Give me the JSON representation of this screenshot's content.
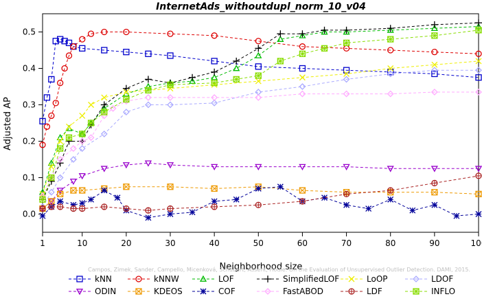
{
  "chart_data": {
    "type": "line",
    "title": "InternetAds_withoutdupl_norm_10_v04",
    "xlabel": "Neighborhood size",
    "ylabel": "Adjusted AP",
    "xlim": [
      1,
      100
    ],
    "ylim": [
      -0.05,
      0.55
    ],
    "xticks": [
      1,
      10,
      20,
      30,
      40,
      50,
      60,
      70,
      80,
      90,
      100
    ],
    "yticks": [
      0.0,
      0.1,
      0.2,
      0.3,
      0.4,
      0.5
    ],
    "grid": false,
    "legend_position": "bottom",
    "watermark": "Campos, Zimek, Sander, Campello, Micenková, Schubert, Assent, Houle: On the Evaluation of Unsupervised Outlier Detection. DAMI, 2015.",
    "series": [
      {
        "name": "kNN",
        "color": "#0000cc",
        "marker": "square",
        "points": [
          [
            1,
            0.255
          ],
          [
            2,
            0.32
          ],
          [
            3,
            0.37
          ],
          [
            4,
            0.475
          ],
          [
            5,
            0.48
          ],
          [
            6,
            0.475
          ],
          [
            7,
            0.47
          ],
          [
            8,
            0.46
          ],
          [
            10,
            0.455
          ],
          [
            15,
            0.45
          ],
          [
            20,
            0.445
          ],
          [
            25,
            0.44
          ],
          [
            30,
            0.435
          ],
          [
            40,
            0.42
          ],
          [
            50,
            0.405
          ],
          [
            60,
            0.4
          ],
          [
            70,
            0.395
          ],
          [
            80,
            0.39
          ],
          [
            90,
            0.385
          ],
          [
            100,
            0.375
          ]
        ]
      },
      {
        "name": "kNNW",
        "color": "#dd0000",
        "marker": "circle",
        "points": [
          [
            1,
            0.19
          ],
          [
            2,
            0.24
          ],
          [
            3,
            0.27
          ],
          [
            4,
            0.305
          ],
          [
            5,
            0.36
          ],
          [
            6,
            0.4
          ],
          [
            7,
            0.435
          ],
          [
            8,
            0.46
          ],
          [
            10,
            0.48
          ],
          [
            12,
            0.495
          ],
          [
            15,
            0.5
          ],
          [
            20,
            0.5
          ],
          [
            30,
            0.495
          ],
          [
            40,
            0.49
          ],
          [
            50,
            0.475
          ],
          [
            60,
            0.46
          ],
          [
            70,
            0.455
          ],
          [
            80,
            0.45
          ],
          [
            90,
            0.445
          ],
          [
            100,
            0.44
          ]
        ]
      },
      {
        "name": "LOF",
        "color": "#00bb00",
        "marker": "triangle",
        "points": [
          [
            1,
            0.06
          ],
          [
            3,
            0.14
          ],
          [
            5,
            0.21
          ],
          [
            7,
            0.235
          ],
          [
            10,
            0.22
          ],
          [
            12,
            0.25
          ],
          [
            15,
            0.29
          ],
          [
            20,
            0.33
          ],
          [
            25,
            0.35
          ],
          [
            30,
            0.36
          ],
          [
            35,
            0.365
          ],
          [
            40,
            0.375
          ],
          [
            45,
            0.4
          ],
          [
            50,
            0.435
          ],
          [
            55,
            0.48
          ],
          [
            60,
            0.49
          ],
          [
            65,
            0.5
          ],
          [
            70,
            0.5
          ],
          [
            80,
            0.505
          ],
          [
            90,
            0.51
          ],
          [
            100,
            0.515
          ]
        ]
      },
      {
        "name": "SimplifiedLOF",
        "color": "#000000",
        "marker": "plus",
        "points": [
          [
            1,
            0.04
          ],
          [
            3,
            0.09
          ],
          [
            5,
            0.14
          ],
          [
            7,
            0.2
          ],
          [
            10,
            0.2
          ],
          [
            12,
            0.245
          ],
          [
            15,
            0.3
          ],
          [
            20,
            0.345
          ],
          [
            25,
            0.37
          ],
          [
            30,
            0.36
          ],
          [
            35,
            0.375
          ],
          [
            40,
            0.39
          ],
          [
            45,
            0.42
          ],
          [
            50,
            0.455
          ],
          [
            55,
            0.495
          ],
          [
            60,
            0.495
          ],
          [
            65,
            0.505
          ],
          [
            70,
            0.505
          ],
          [
            80,
            0.51
          ],
          [
            90,
            0.52
          ],
          [
            100,
            0.525
          ]
        ]
      },
      {
        "name": "LoOP",
        "color": "#eeee00",
        "marker": "x",
        "points": [
          [
            1,
            0.055
          ],
          [
            3,
            0.13
          ],
          [
            5,
            0.2
          ],
          [
            7,
            0.24
          ],
          [
            10,
            0.27
          ],
          [
            12,
            0.3
          ],
          [
            15,
            0.32
          ],
          [
            20,
            0.335
          ],
          [
            30,
            0.345
          ],
          [
            40,
            0.355
          ],
          [
            50,
            0.365
          ],
          [
            60,
            0.375
          ],
          [
            70,
            0.385
          ],
          [
            80,
            0.4
          ],
          [
            90,
            0.41
          ],
          [
            100,
            0.42
          ]
        ]
      },
      {
        "name": "LDOF",
        "color": "#aaaaff",
        "marker": "diamond",
        "points": [
          [
            1,
            0.02
          ],
          [
            3,
            0.06
          ],
          [
            5,
            0.1
          ],
          [
            8,
            0.15
          ],
          [
            10,
            0.18
          ],
          [
            15,
            0.22
          ],
          [
            20,
            0.28
          ],
          [
            25,
            0.3
          ],
          [
            30,
            0.3
          ],
          [
            40,
            0.305
          ],
          [
            50,
            0.335
          ],
          [
            60,
            0.35
          ],
          [
            70,
            0.37
          ],
          [
            80,
            0.385
          ],
          [
            90,
            0.395
          ],
          [
            100,
            0.395
          ]
        ]
      },
      {
        "name": "ODIN",
        "color": "#9900cc",
        "marker": "triangle-down",
        "points": [
          [
            1,
            0.015
          ],
          [
            3,
            0.035
          ],
          [
            5,
            0.065
          ],
          [
            8,
            0.09
          ],
          [
            10,
            0.105
          ],
          [
            15,
            0.125
          ],
          [
            20,
            0.135
          ],
          [
            25,
            0.14
          ],
          [
            30,
            0.135
          ],
          [
            40,
            0.13
          ],
          [
            50,
            0.13
          ],
          [
            60,
            0.13
          ],
          [
            70,
            0.13
          ],
          [
            80,
            0.125
          ],
          [
            90,
            0.125
          ],
          [
            100,
            0.125
          ]
        ]
      },
      {
        "name": "KDEOS",
        "color": "#ee9900",
        "marker": "square-x",
        "points": [
          [
            1,
            0.015
          ],
          [
            3,
            0.035
          ],
          [
            5,
            0.055
          ],
          [
            8,
            0.065
          ],
          [
            10,
            0.065
          ],
          [
            15,
            0.07
          ],
          [
            20,
            0.075
          ],
          [
            30,
            0.075
          ],
          [
            40,
            0.07
          ],
          [
            50,
            0.075
          ],
          [
            60,
            0.065
          ],
          [
            70,
            0.06
          ],
          [
            80,
            0.06
          ],
          [
            90,
            0.06
          ],
          [
            100,
            0.055
          ]
        ]
      },
      {
        "name": "COF",
        "color": "#000099",
        "marker": "star",
        "points": [
          [
            1,
            -0.005
          ],
          [
            3,
            0.02
          ],
          [
            5,
            0.035
          ],
          [
            8,
            0.025
          ],
          [
            10,
            0.03
          ],
          [
            12,
            0.04
          ],
          [
            15,
            0.065
          ],
          [
            18,
            0.045
          ],
          [
            20,
            0.01
          ],
          [
            25,
            -0.01
          ],
          [
            30,
            0.0
          ],
          [
            35,
            0.005
          ],
          [
            40,
            0.035
          ],
          [
            45,
            0.04
          ],
          [
            50,
            0.07
          ],
          [
            55,
            0.075
          ],
          [
            60,
            0.035
          ],
          [
            65,
            0.045
          ],
          [
            70,
            0.025
          ],
          [
            75,
            0.015
          ],
          [
            80,
            0.04
          ],
          [
            85,
            0.01
          ],
          [
            90,
            0.025
          ],
          [
            95,
            -0.005
          ],
          [
            100,
            0.0
          ]
        ]
      },
      {
        "name": "FastABOD",
        "color": "#ffaaff",
        "marker": "diamond",
        "points": [
          [
            1,
            0.05
          ],
          [
            3,
            0.1
          ],
          [
            5,
            0.15
          ],
          [
            8,
            0.18
          ],
          [
            10,
            0.2
          ],
          [
            12,
            0.21
          ],
          [
            15,
            0.27
          ],
          [
            17,
            0.29
          ],
          [
            20,
            0.31
          ],
          [
            25,
            0.32
          ],
          [
            30,
            0.32
          ],
          [
            40,
            0.32
          ],
          [
            50,
            0.32
          ],
          [
            60,
            0.33
          ],
          [
            70,
            0.33
          ],
          [
            80,
            0.33
          ],
          [
            90,
            0.335
          ],
          [
            100,
            0.335
          ]
        ]
      },
      {
        "name": "LDF",
        "color": "#aa2222",
        "marker": "circle-plus",
        "points": [
          [
            1,
            0.015
          ],
          [
            3,
            0.02
          ],
          [
            5,
            0.02
          ],
          [
            8,
            0.015
          ],
          [
            10,
            0.015
          ],
          [
            15,
            0.02
          ],
          [
            20,
            0.015
          ],
          [
            25,
            0.01
          ],
          [
            30,
            0.015
          ],
          [
            40,
            0.02
          ],
          [
            50,
            0.025
          ],
          [
            60,
            0.035
          ],
          [
            70,
            0.055
          ],
          [
            80,
            0.065
          ],
          [
            90,
            0.085
          ],
          [
            100,
            0.105
          ]
        ]
      },
      {
        "name": "INFLO",
        "color": "#88dd00",
        "marker": "square-star",
        "points": [
          [
            1,
            0.04
          ],
          [
            3,
            0.1
          ],
          [
            5,
            0.18
          ],
          [
            7,
            0.21
          ],
          [
            10,
            0.22
          ],
          [
            12,
            0.25
          ],
          [
            15,
            0.28
          ],
          [
            20,
            0.315
          ],
          [
            25,
            0.34
          ],
          [
            30,
            0.355
          ],
          [
            40,
            0.36
          ],
          [
            45,
            0.37
          ],
          [
            50,
            0.38
          ],
          [
            55,
            0.42
          ],
          [
            60,
            0.44
          ],
          [
            65,
            0.455
          ],
          [
            70,
            0.47
          ],
          [
            80,
            0.48
          ],
          [
            90,
            0.49
          ],
          [
            100,
            0.505
          ]
        ]
      }
    ]
  }
}
